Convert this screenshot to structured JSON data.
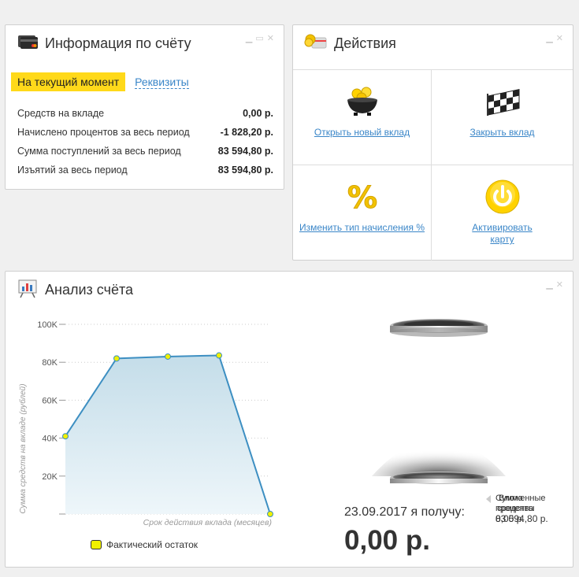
{
  "info_panel": {
    "title": "Информация по счёту",
    "tab_active": "На текущий момент",
    "tab_link": "Реквизиты",
    "rows": [
      {
        "label": "Средств на вкладе",
        "value": "0,00 р."
      },
      {
        "label": "Начислено процентов за весь период",
        "value": "-1 828,20 р."
      },
      {
        "label": "Сумма поступлений за весь период",
        "value": "83 594,80 р."
      },
      {
        "label": "Изъятий за весь период",
        "value": "83 594,80 р."
      }
    ],
    "icons": [
      "credit-card-icon",
      "minimize-icon",
      "maximize-icon",
      "close-icon"
    ]
  },
  "actions_panel": {
    "title": "Действия",
    "actions": [
      {
        "label": "Открыть новый вклад",
        "icon": "gold-coins-pot-icon"
      },
      {
        "label": "Закрыть вклад",
        "icon": "checkered-flag-icon"
      },
      {
        "label": "Изменить тип начисления %",
        "icon": "percent-icon"
      },
      {
        "label": "Активировать карту",
        "icon": "power-button-icon"
      }
    ]
  },
  "analysis_panel": {
    "title": "Анализ счёта",
    "legend": "Фактический остаток",
    "summary_date": "23.09.2017 я получу:",
    "summary_amount": "0,00 р.",
    "side_label_a": "Вложенные",
    "side_label_b": "Сумма",
    "side_label_c": "проценты",
    "side_label_d": "средства",
    "side_value_a": "0,00 р.",
    "side_value_b": "83 594,80 р."
  },
  "chart_data": {
    "type": "area",
    "title": "",
    "xlabel": "Срок действия вклада (месяцев)",
    "ylabel": "Сумма средств на вкладе (рублей)",
    "ylim": [
      0,
      100000
    ],
    "yticks": [
      "20K",
      "40K",
      "60K",
      "80K",
      "100K"
    ],
    "grid": true,
    "legend_position": "bottom",
    "series": [
      {
        "name": "Фактический остаток",
        "values": [
          41000,
          82000,
          83000,
          83600,
          0
        ]
      }
    ],
    "colors": {
      "line": "#3d8fc2",
      "fill_top": "#c4dde9",
      "fill_bottom": "#eef6fa",
      "point": "#f0f000"
    }
  }
}
